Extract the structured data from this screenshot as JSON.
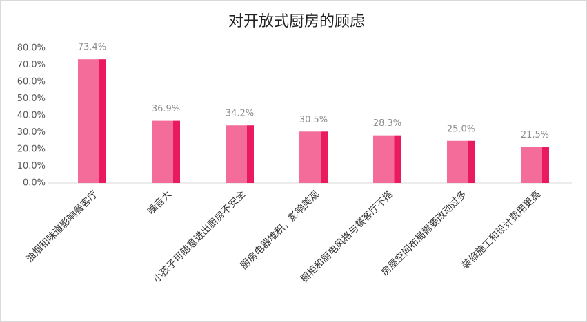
{
  "chart_data": {
    "type": "bar",
    "title": "对开放式厨房的顾虑",
    "categories": [
      "油烟和味道影响餐客厅",
      "噪音大",
      "小孩子可随意进出厨房不安全",
      "厨房电器堆积，影响美观",
      "橱柜和厨电风格与餐客厅不搭",
      "房屋空间布局需要改动过多",
      "装修施工和设计费用更高"
    ],
    "values": [
      73.4,
      36.9,
      34.2,
      30.5,
      28.3,
      25.0,
      21.5
    ],
    "value_labels": [
      "73.4%",
      "36.9%",
      "34.2%",
      "30.5%",
      "28.3%",
      "25.0%",
      "21.5%"
    ],
    "color": "#f46d9a",
    "ylim": [
      0,
      80
    ],
    "yticks": [
      {
        "value": 0,
        "label": "0.0%"
      },
      {
        "value": 10,
        "label": "10.0%"
      },
      {
        "value": 20,
        "label": "20.0%"
      },
      {
        "value": 30,
        "label": "30.0%"
      },
      {
        "value": 40,
        "label": "40.0%"
      },
      {
        "value": 50,
        "label": "50.0%"
      },
      {
        "value": 60,
        "label": "60.0%"
      },
      {
        "value": 70,
        "label": "70.0%"
      },
      {
        "value": 80,
        "label": "80.0%"
      }
    ],
    "grid": false
  }
}
